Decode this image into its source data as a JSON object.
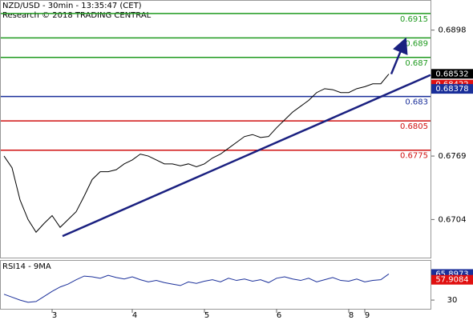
{
  "chart_data": [
    {
      "type": "line",
      "title": "NZD/USD - 30min - 13:35:47 (CET)",
      "subtitle": "Research © 2018 TRADING CENTRAL",
      "categories": [
        null,
        null,
        null,
        null,
        null,
        null,
        "3",
        null,
        null,
        null,
        null,
        null,
        null,
        null,
        null,
        null,
        "4",
        null,
        null,
        null,
        null,
        null,
        null,
        null,
        null,
        "5",
        null,
        null,
        null,
        null,
        null,
        null,
        null,
        null,
        "6",
        null,
        null,
        null,
        null,
        null,
        null,
        null,
        null,
        "8",
        null,
        "9",
        null,
        null,
        null
      ],
      "series": [
        {
          "color": "#000000",
          "values": [
            0.6769,
            0.6757,
            0.6724,
            0.6704,
            0.6691,
            0.67,
            0.6708,
            0.6696,
            0.6704,
            0.6712,
            0.6728,
            0.6745,
            0.6753,
            0.6753,
            0.6755,
            0.6761,
            0.6765,
            0.6771,
            0.6769,
            0.6765,
            0.6761,
            0.6761,
            0.6759,
            0.6761,
            0.6758,
            0.6761,
            0.6767,
            0.6771,
            0.6777,
            0.6783,
            0.6789,
            0.6791,
            0.6788,
            0.6789,
            0.6798,
            0.6806,
            0.6814,
            0.682,
            0.6826,
            0.6834,
            0.6838,
            0.6837,
            0.6834,
            0.6834,
            0.6838,
            0.684,
            0.6843,
            0.6843,
            0.6853
          ]
        }
      ],
      "ylim": [
        0.6665,
        0.6928
      ],
      "yticks": [
        0.6898,
        0.6769,
        0.6704
      ],
      "levels": [
        {
          "value": 0.6915,
          "color": "#1f9a1f"
        },
        {
          "value": 0.689,
          "color": "#1f9a1f"
        },
        {
          "value": 0.687,
          "color": "#1f9a1f"
        },
        {
          "value": 0.683,
          "color": "#1a2f9a"
        },
        {
          "value": 0.6805,
          "color": "#d01010"
        },
        {
          "value": 0.6775,
          "color": "#d01010"
        }
      ],
      "price_labels": [
        {
          "value": 0.68532,
          "color": "#000000"
        },
        {
          "value": 0.68422,
          "color": "#e01010"
        },
        {
          "value": 0.68378,
          "color": "#1a2f9a"
        }
      ],
      "trendline": {
        "x": [
          7.3,
          53.2
        ],
        "values": [
          0.6687,
          0.6852
        ],
        "color": "#1a2080"
      },
      "arrow": {
        "x": [
          48.3,
          49.8
        ],
        "values": [
          0.6853,
          0.6883
        ],
        "color": "#1a2080"
      }
    },
    {
      "type": "line",
      "title": "RSI14 - 9MA",
      "series": [
        {
          "color": "#1a2f9a",
          "values": [
            38,
            34,
            30,
            27,
            28,
            35,
            42,
            48,
            52,
            58,
            63,
            62,
            60,
            64,
            61,
            59,
            62,
            58,
            55,
            57,
            54,
            52,
            50,
            55,
            53,
            56,
            58,
            55,
            60,
            57,
            59,
            56,
            58,
            54,
            60,
            62,
            59,
            57,
            60,
            55,
            58,
            61,
            57,
            56,
            59,
            55,
            57,
            58,
            65.8973
          ]
        }
      ],
      "ylim": [
        18,
        84
      ],
      "yticks": [
        30
      ],
      "price_labels": [
        {
          "value": 65.8973,
          "color": "#1a2f9a"
        },
        {
          "value": 57.9084,
          "color": "#e01010"
        }
      ]
    }
  ]
}
